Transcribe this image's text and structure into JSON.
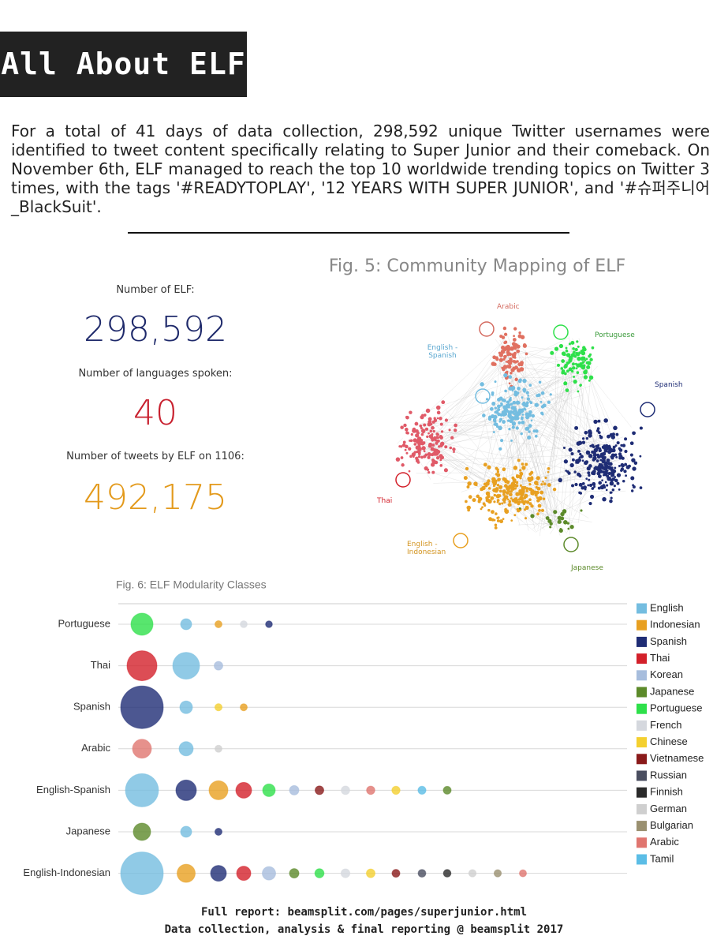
{
  "header": {
    "title": "All About ELF"
  },
  "intro": "For a total of 41 days of data collection, 298,592 unique Twitter usernames were identified to tweet content specifically relating to Super Junior and their comeback. On November 6th, ELF managed to reach the top 10 worldwide trending topics on Twitter 3 times, with the tags '#READYTOPLAY', '12 YEARS WITH SUPER JUNIOR', and '#슈퍼주니어_BlackSuit'.",
  "stats": [
    {
      "label": "Number of ELF:",
      "value": "298,592",
      "color": "#1f2a6b"
    },
    {
      "label": "Number of languages spoken:",
      "value": "40",
      "color": "#c8202e"
    },
    {
      "label": "Number of tweets by ELF on 1106:",
      "value": "492,175",
      "color": "#e39a1c"
    }
  ],
  "figure5": {
    "title": "Fig. 5: Community Mapping of ELF",
    "labels": [
      "Arabic",
      "Portuguese",
      "English - Spanish",
      "Spanish",
      "Thai",
      "English - Indonesian",
      "Japanese"
    ]
  },
  "chart_data": {
    "type": "bubble",
    "title": "Fig. 6: ELF Modularity Classes",
    "categories": [
      "Portuguese",
      "Thai",
      "Spanish",
      "Arabic",
      "English-Spanish",
      "Japanese",
      "English-Indonesian"
    ],
    "series": [
      {
        "name": "English",
        "color": "#74bde0",
        "values": [
          7,
          17,
          8,
          9,
          21,
          7,
          27
        ]
      },
      {
        "name": "Indonesian",
        "color": "#e8a021",
        "values": [
          4.5,
          null,
          4.5,
          null,
          12,
          null,
          11.5
        ]
      },
      {
        "name": "Spanish",
        "color": "#1f2d75",
        "values": [
          4.3,
          null,
          27,
          null,
          13,
          4.5,
          10
        ]
      },
      {
        "name": "Thai",
        "color": "#d3202a",
        "values": [
          null,
          19,
          null,
          null,
          10,
          null,
          9
        ]
      },
      {
        "name": "Korean",
        "color": "#a7bddd",
        "values": [
          null,
          5.5,
          null,
          null,
          6,
          null,
          8.5
        ]
      },
      {
        "name": "Japanese",
        "color": "#5c8a2a",
        "values": [
          null,
          null,
          null,
          null,
          5,
          11,
          6
        ]
      },
      {
        "name": "Portuguese",
        "color": "#2ee04a",
        "values": [
          14,
          null,
          null,
          null,
          8,
          null,
          5.8
        ]
      },
      {
        "name": "French",
        "color": "#d5d8de",
        "values": [
          4.4,
          null,
          null,
          null,
          5.4,
          null,
          5.6
        ]
      },
      {
        "name": "Chinese",
        "color": "#f4d02f",
        "values": [
          null,
          null,
          4.6,
          null,
          5.2,
          null,
          5.5
        ]
      },
      {
        "name": "Vietnamese",
        "color": "#8a1a1a",
        "values": [
          null,
          null,
          null,
          null,
          5.5,
          null,
          5
        ]
      },
      {
        "name": "Russian",
        "color": "#4a4e60",
        "values": [
          null,
          null,
          null,
          null,
          null,
          null,
          4.9
        ]
      },
      {
        "name": "Finnish",
        "color": "#2a2a2a",
        "values": [
          null,
          null,
          null,
          null,
          null,
          null,
          4.8
        ]
      },
      {
        "name": "German",
        "color": "#cfcfcf",
        "values": [
          null,
          null,
          null,
          4.5,
          null,
          null,
          4.7
        ]
      },
      {
        "name": "Bulgarian",
        "color": "#9a9070",
        "values": [
          null,
          null,
          null,
          null,
          null,
          null,
          4.6
        ]
      },
      {
        "name": "Arabic",
        "color": "#e0756f",
        "values": [
          null,
          null,
          null,
          12,
          5.3,
          null,
          4.5
        ]
      },
      {
        "name": "Tamil",
        "color": "#5bbde6",
        "values": [
          null,
          null,
          null,
          null,
          5.1,
          null,
          null
        ]
      }
    ]
  },
  "footer": [
    "Full report: beamsplit.com/pages/superjunior.html",
    "Data collection, analysis & final reporting @ beamsplit 2017"
  ]
}
